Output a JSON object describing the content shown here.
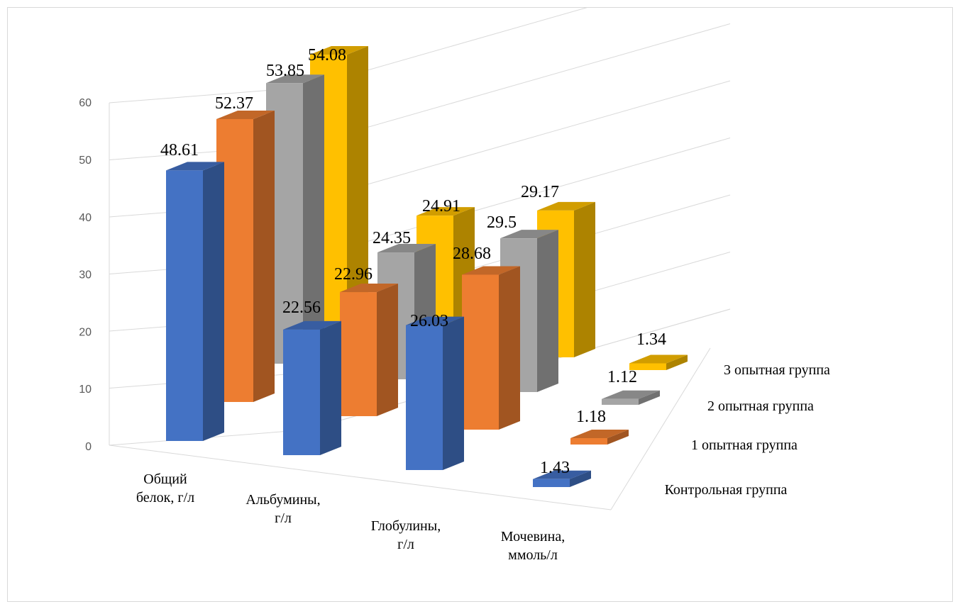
{
  "chart_data": {
    "type": "bar",
    "subtype": "3d-column",
    "categories": [
      "Общий белок, г/л",
      "Альбумины, г/л",
      "Глобулины, г/л",
      "Мочевина, ммоль/л"
    ],
    "category_lines": [
      [
        "Общий",
        "белок, г/л"
      ],
      [
        "Альбумины,",
        "г/л"
      ],
      [
        "Глобулины,",
        "г/л"
      ],
      [
        "Мочевина,",
        "ммоль/л"
      ]
    ],
    "series": [
      {
        "name": "Контрольная группа",
        "values": [
          48.61,
          22.56,
          26.03,
          1.43
        ],
        "labels": [
          "48.61",
          "22.56",
          "26.03",
          "1.43"
        ],
        "color": "#4472C4"
      },
      {
        "name": "1 опытная группа",
        "values": [
          52.37,
          22.96,
          28.68,
          1.18
        ],
        "labels": [
          "52.37",
          "22.96",
          "28.68",
          "1.18"
        ],
        "color": "#ED7D31"
      },
      {
        "name": "2 опытная группа",
        "values": [
          53.85,
          24.35,
          29.5,
          1.12
        ],
        "labels": [
          "53.85",
          "24.35",
          "29.5",
          "1.12"
        ],
        "color": "#A5A5A5"
      },
      {
        "name": "3 опытная группа",
        "values": [
          54.08,
          24.91,
          29.17,
          1.34
        ],
        "labels": [
          "54.08",
          "24.91",
          "29.17",
          "1.34"
        ],
        "color": "#FFC000"
      }
    ],
    "yticks": [
      "0",
      "10",
      "20",
      "30",
      "40",
      "50",
      "60"
    ],
    "ylim": [
      0,
      60
    ],
    "grid": true,
    "title": "",
    "xlabel": "",
    "ylabel": ""
  }
}
